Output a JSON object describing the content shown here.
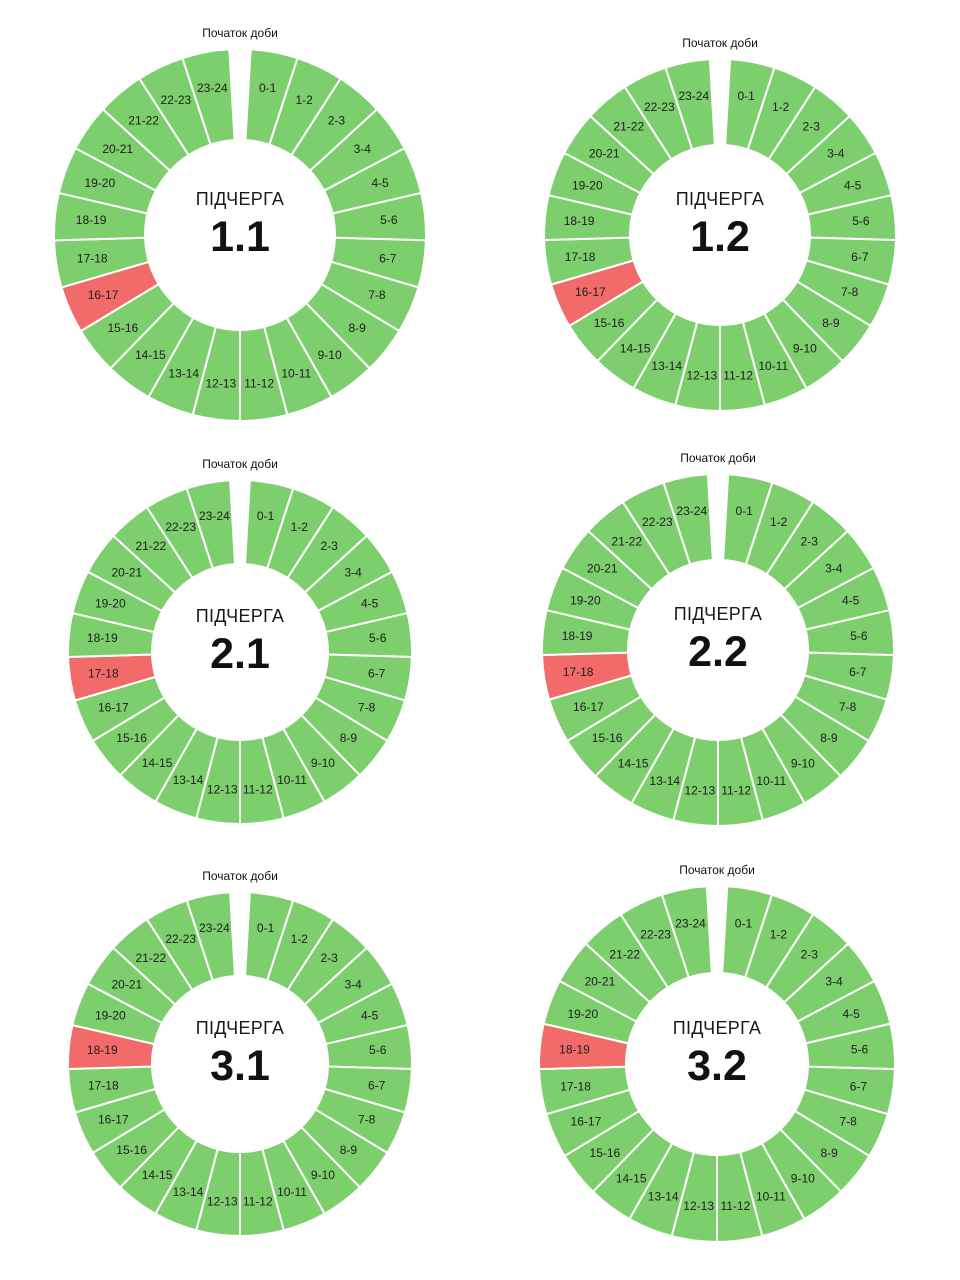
{
  "start_label": "Початок доби",
  "subqueue_word": "ПІДЧЕРГА",
  "colors": {
    "on": "#7dce6d",
    "off": "#f36a6a",
    "background": "#ffffff"
  },
  "hour_labels": [
    "0-1",
    "1-2",
    "2-3",
    "3-4",
    "4-5",
    "5-6",
    "6-7",
    "7-8",
    "8-9",
    "9-10",
    "10-11",
    "11-12",
    "12-13",
    "13-14",
    "14-15",
    "15-16",
    "16-17",
    "17-18",
    "18-19",
    "19-20",
    "20-21",
    "21-22",
    "22-23",
    "23-24"
  ],
  "chart_data": [
    {
      "type": "donut",
      "subqueue": "1.1",
      "outage_hours": [
        "16-17"
      ]
    },
    {
      "type": "donut",
      "subqueue": "1.2",
      "outage_hours": [
        "16-17"
      ]
    },
    {
      "type": "donut",
      "subqueue": "2.1",
      "outage_hours": [
        "17-18"
      ]
    },
    {
      "type": "donut",
      "subqueue": "2.2",
      "outage_hours": [
        "17-18"
      ]
    },
    {
      "type": "donut",
      "subqueue": "3.1",
      "outage_hours": [
        "18-19"
      ]
    },
    {
      "type": "donut",
      "subqueue": "3.2",
      "outage_hours": [
        "18-19"
      ]
    }
  ]
}
